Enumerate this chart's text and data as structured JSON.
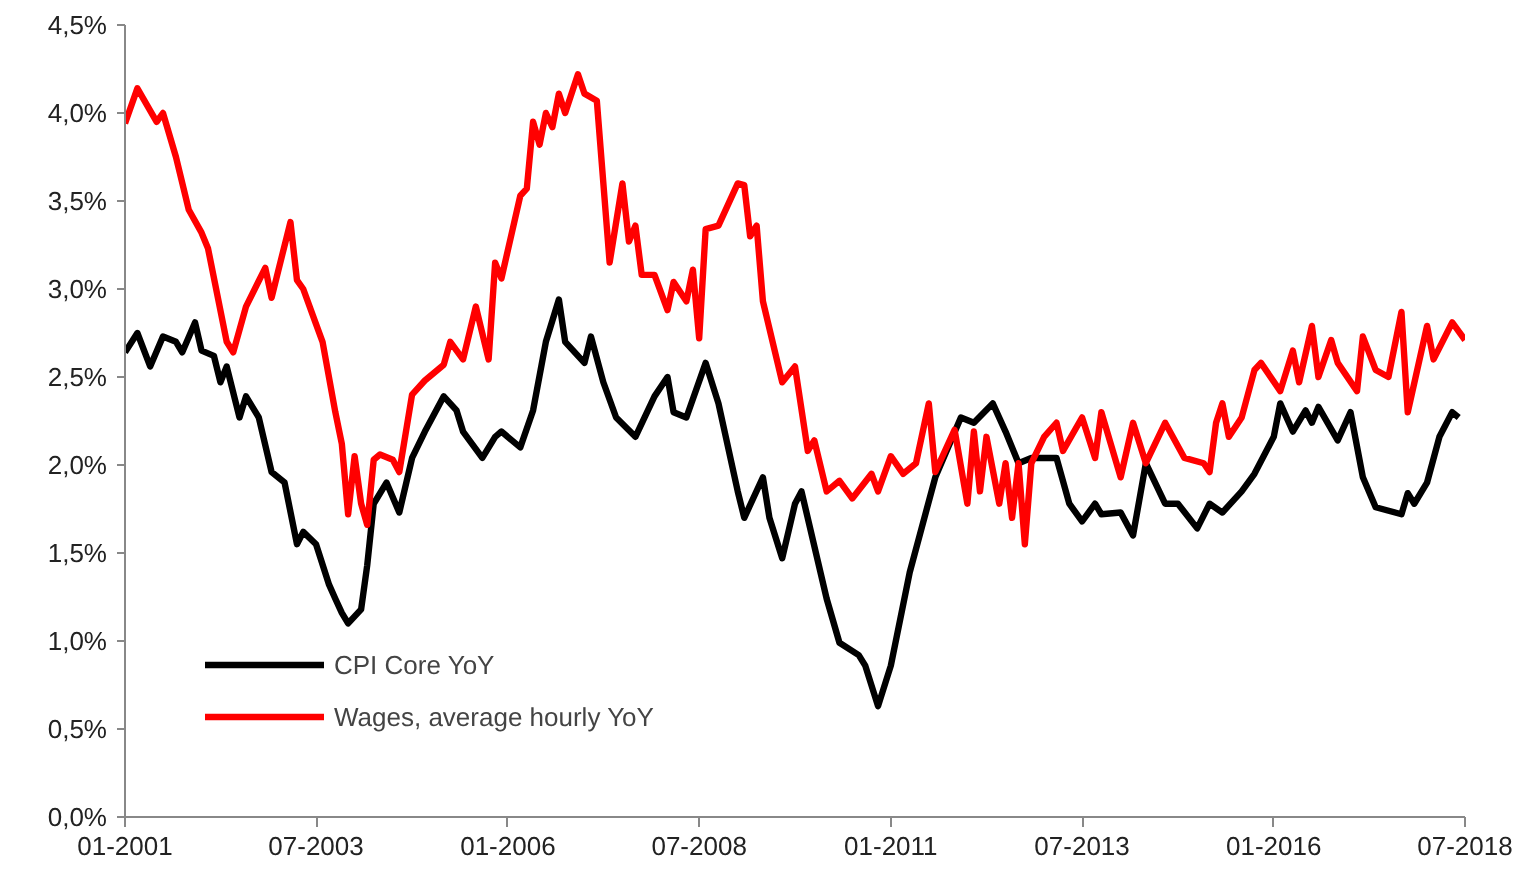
{
  "chart_data": {
    "type": "line",
    "legend": "bottom left",
    "grid": false,
    "line_style": "solid",
    "marker": "none",
    "xlim": [
      "2001-01",
      "2018-07"
    ],
    "xticks": [
      {
        "value": "2001-01",
        "label": "01-2001"
      },
      {
        "value": "2003-07",
        "label": "07-2003"
      },
      {
        "value": "2006-01",
        "label": "01-2006"
      },
      {
        "value": "2008-07",
        "label": "07-2008"
      },
      {
        "value": "2011-01",
        "label": "01-2011"
      },
      {
        "value": "2013-07",
        "label": "07-2013"
      },
      {
        "value": "2016-01",
        "label": "01-2016"
      },
      {
        "value": "2018-07",
        "label": "07-2018"
      }
    ],
    "ylim": [
      0,
      4.5
    ],
    "yticks": [
      {
        "value": 0,
        "label": "0,0%"
      },
      {
        "value": 0.5,
        "label": "0,5%"
      },
      {
        "value": 1,
        "label": "1,0%"
      },
      {
        "value": 1.5,
        "label": "1,5%"
      },
      {
        "value": 2,
        "label": "2,0%"
      },
      {
        "value": 2.5,
        "label": "2,5%"
      },
      {
        "value": 3,
        "label": "3,0%"
      },
      {
        "value": 3.5,
        "label": "3,5%"
      },
      {
        "value": 4,
        "label": "4,0%"
      },
      {
        "value": 4.5,
        "label": "4,5%"
      }
    ],
    "series": [
      {
        "name": "CPI Core YoY",
        "color": "#000000",
        "x": [
          "2001-01",
          "2001-03",
          "2001-05",
          "2001-07",
          "2001-09",
          "2001-10",
          "2001-12",
          "2002-01",
          "2002-03",
          "2002-04",
          "2002-05",
          "2002-07",
          "2002-08",
          "2002-10",
          "2002-12",
          "2003-02",
          "2003-04",
          "2003-05",
          "2003-07",
          "2003-09",
          "2003-10",
          "2003-11",
          "2003-12",
          "2004-02",
          "2004-03",
          "2004-04",
          "2004-06",
          "2004-08",
          "2004-10",
          "2004-12",
          "2005-03",
          "2005-05",
          "2005-06",
          "2005-09",
          "2005-11",
          "2005-12",
          "2006-03",
          "2006-05",
          "2006-07",
          "2006-09",
          "2006-10",
          "2007-01",
          "2007-02",
          "2007-04",
          "2007-06",
          "2007-09",
          "2007-12",
          "2008-02",
          "2008-03",
          "2008-05",
          "2008-08",
          "2008-10",
          "2009-01",
          "2009-02",
          "2009-05",
          "2009-06",
          "2009-08",
          "2009-10",
          "2009-11",
          "2010-03",
          "2010-05",
          "2010-08",
          "2010-09",
          "2010-11",
          "2011-01",
          "2011-04",
          "2011-08",
          "2011-12",
          "2012-02",
          "2012-05",
          "2012-07",
          "2012-09",
          "2012-11",
          "2013-03",
          "2013-05",
          "2013-07",
          "2013-09",
          "2013-10",
          "2014-01",
          "2014-03",
          "2014-05",
          "2014-08",
          "2014-10",
          "2015-01",
          "2015-03",
          "2015-05",
          "2015-08",
          "2015-10",
          "2016-01",
          "2016-02",
          "2016-04",
          "2016-06",
          "2016-07",
          "2016-08",
          "2016-11",
          "2017-01",
          "2017-03",
          "2017-05",
          "2017-09",
          "2017-10",
          "2017-11",
          "2018-01",
          "2018-03",
          "2018-05",
          "2018-06"
        ],
        "values": [
          2.64,
          2.75,
          2.56,
          2.73,
          2.7,
          2.64,
          2.81,
          2.65,
          2.62,
          2.47,
          2.56,
          2.27,
          2.39,
          2.27,
          1.96,
          1.9,
          1.55,
          1.62,
          1.55,
          1.32,
          1.24,
          1.16,
          1.1,
          1.18,
          1.43,
          1.78,
          1.9,
          1.73,
          2.04,
          2.19,
          2.39,
          2.31,
          2.19,
          2.04,
          2.16,
          2.19,
          2.1,
          2.31,
          2.7,
          2.94,
          2.7,
          2.58,
          2.73,
          2.47,
          2.27,
          2.16,
          2.39,
          2.5,
          2.3,
          2.27,
          2.58,
          2.35,
          1.85,
          1.7,
          1.93,
          1.7,
          1.47,
          1.78,
          1.85,
          1.24,
          0.99,
          0.92,
          0.86,
          0.63,
          0.86,
          1.39,
          1.93,
          2.27,
          2.24,
          2.35,
          2.19,
          2.01,
          2.04,
          2.04,
          1.78,
          1.68,
          1.78,
          1.72,
          1.73,
          1.6,
          2.01,
          1.78,
          1.78,
          1.64,
          1.78,
          1.73,
          1.85,
          1.95,
          2.16,
          2.35,
          2.19,
          2.31,
          2.24,
          2.33,
          2.14,
          2.3,
          1.93,
          1.76,
          1.72,
          1.84,
          1.78,
          1.9,
          2.16,
          2.3,
          2.27
        ]
      },
      {
        "name": "Wages, average hourly YoY",
        "color": "#ff0000",
        "x": [
          "2001-01",
          "2001-03",
          "2001-06",
          "2001-07",
          "2001-09",
          "2001-11",
          "2002-01",
          "2002-02",
          "2002-05",
          "2002-06",
          "2002-08",
          "2002-11",
          "2002-12",
          "2003-01",
          "2003-03",
          "2003-04",
          "2003-05",
          "2003-07",
          "2003-08",
          "2003-10",
          "2003-11",
          "2003-12",
          "2004-01",
          "2004-02",
          "2004-03",
          "2004-04",
          "2004-05",
          "2004-07",
          "2004-08",
          "2004-10",
          "2004-12",
          "2005-03",
          "2005-04",
          "2005-06",
          "2005-08",
          "2005-10",
          "2005-11",
          "2005-12",
          "2006-03",
          "2006-04",
          "2006-05",
          "2006-06",
          "2006-07",
          "2006-08",
          "2006-09",
          "2006-10",
          "2006-12",
          "2007-01",
          "2007-03",
          "2007-05",
          "2007-07",
          "2007-08",
          "2007-09",
          "2007-10",
          "2007-12",
          "2008-02",
          "2008-03",
          "2008-05",
          "2008-06",
          "2008-07",
          "2008-08",
          "2008-10",
          "2009-01",
          "2009-02",
          "2009-03",
          "2009-04",
          "2009-05",
          "2009-08",
          "2009-10",
          "2009-12",
          "2010-01",
          "2010-03",
          "2010-05",
          "2010-07",
          "2010-10",
          "2010-11",
          "2011-01",
          "2011-03",
          "2011-05",
          "2011-07",
          "2011-08",
          "2011-11",
          "2012-01",
          "2012-02",
          "2012-03",
          "2012-04",
          "2012-06",
          "2012-07",
          "2012-08",
          "2012-09",
          "2012-10",
          "2012-11",
          "2013-01",
          "2013-03",
          "2013-04",
          "2013-07",
          "2013-09",
          "2013-10",
          "2014-01",
          "2014-03",
          "2014-05",
          "2014-08",
          "2014-11",
          "2015-02",
          "2015-03",
          "2015-04",
          "2015-05",
          "2015-06",
          "2015-08",
          "2015-10",
          "2015-11",
          "2016-02",
          "2016-04",
          "2016-05",
          "2016-07",
          "2016-08",
          "2016-10",
          "2016-11",
          "2017-02",
          "2017-03",
          "2017-05",
          "2017-07",
          "2017-09",
          "2017-10",
          "2018-01",
          "2018-02",
          "2018-05",
          "2018-07"
        ],
        "values": [
          3.94,
          4.14,
          3.95,
          4.0,
          3.75,
          3.45,
          3.32,
          3.23,
          2.7,
          2.64,
          2.9,
          3.12,
          2.95,
          3.1,
          3.38,
          3.05,
          3.0,
          2.8,
          2.7,
          2.3,
          2.12,
          1.72,
          2.05,
          1.78,
          1.66,
          2.03,
          2.06,
          2.03,
          1.96,
          2.4,
          2.48,
          2.57,
          2.7,
          2.6,
          2.9,
          2.6,
          3.15,
          3.06,
          3.53,
          3.57,
          3.95,
          3.82,
          4.0,
          3.92,
          4.11,
          4.0,
          4.22,
          4.11,
          4.07,
          3.15,
          3.6,
          3.27,
          3.36,
          3.08,
          3.08,
          2.88,
          3.04,
          2.93,
          3.11,
          2.72,
          3.34,
          3.36,
          3.6,
          3.59,
          3.3,
          3.36,
          2.93,
          2.47,
          2.56,
          2.08,
          2.14,
          1.85,
          1.91,
          1.81,
          1.95,
          1.85,
          2.05,
          1.95,
          2.01,
          2.35,
          1.96,
          2.2,
          1.78,
          2.19,
          1.85,
          2.16,
          1.78,
          2.01,
          1.7,
          2.01,
          1.55,
          2.01,
          2.16,
          2.24,
          2.08,
          2.27,
          2.04,
          2.3,
          1.93,
          2.24,
          2.01,
          2.24,
          2.04,
          2.01,
          1.96,
          2.24,
          2.35,
          2.16,
          2.27,
          2.54,
          2.58,
          2.42,
          2.65,
          2.47,
          2.79,
          2.5,
          2.71,
          2.58,
          2.42,
          2.73,
          2.54,
          2.5,
          2.87,
          2.3,
          2.79,
          2.6,
          2.81,
          2.71
        ]
      }
    ]
  }
}
